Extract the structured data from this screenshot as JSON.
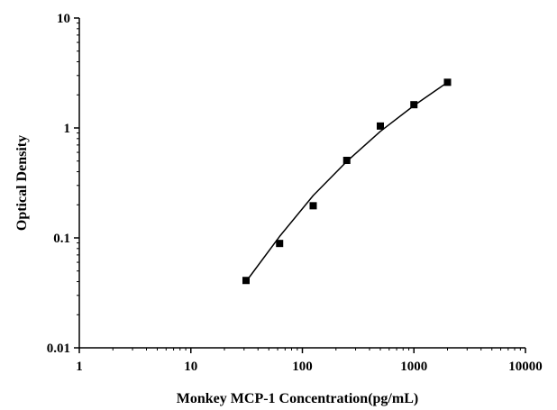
{
  "chart_data": {
    "type": "scatter",
    "title": "",
    "xlabel": "Monkey MCP-1 Concentration(pg/mL)",
    "ylabel": "Optical Density",
    "xscale": "log",
    "yscale": "log",
    "xlim": [
      1,
      10000
    ],
    "ylim": [
      0.01,
      10
    ],
    "xticks": [
      "1",
      "10",
      "100",
      "1000",
      "10000"
    ],
    "yticks": [
      "0.01",
      "0.1",
      "1",
      "10"
    ],
    "grid": false,
    "legend": "none",
    "series": [
      {
        "points": [
          {
            "x": 31.25,
            "y": 0.041
          },
          {
            "x": 62.5,
            "y": 0.089
          },
          {
            "x": 125,
            "y": 0.196
          },
          {
            "x": 250,
            "y": 0.507
          },
          {
            "x": 500,
            "y": 1.041
          },
          {
            "x": 1000,
            "y": 1.628
          },
          {
            "x": 2000,
            "y": 2.603
          }
        ]
      }
    ],
    "fit_curve": {
      "type": "line",
      "points": [
        {
          "x": 31.25,
          "y": 0.04
        },
        {
          "x": 62.5,
          "y": 0.103
        },
        {
          "x": 125,
          "y": 0.243
        },
        {
          "x": 250,
          "y": 0.496
        },
        {
          "x": 500,
          "y": 0.93
        },
        {
          "x": 1000,
          "y": 1.6
        },
        {
          "x": 2000,
          "y": 2.6
        }
      ]
    },
    "colors": {
      "marker": "#000000",
      "line": "#000000",
      "axis": "#000000"
    }
  }
}
